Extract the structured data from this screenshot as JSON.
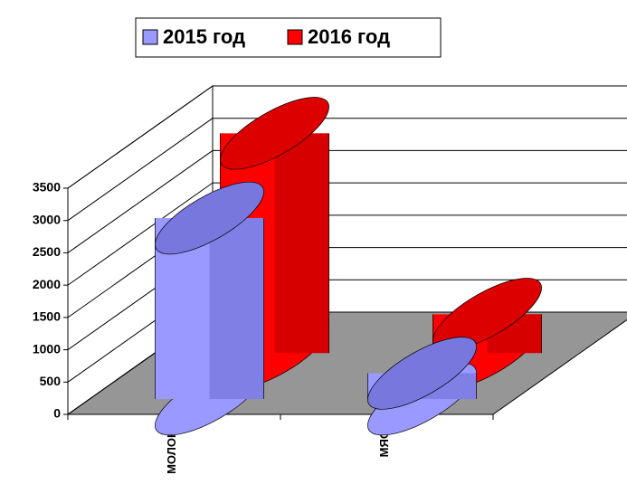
{
  "chart_data": {
    "type": "bar3d",
    "categories": [
      "МОЛОКО",
      "МЯСО"
    ],
    "series": [
      {
        "name": "2015 год",
        "color": "#9999ff",
        "values": [
          2800,
          400
        ]
      },
      {
        "name": "2016 год",
        "color": "#ff0000",
        "values": [
          3400,
          600
        ]
      }
    ],
    "ylim": [
      0,
      3500
    ],
    "yticks": [
      0,
      500,
      1000,
      1500,
      2000,
      2500,
      3000,
      3500
    ],
    "grid": true,
    "legend": "top"
  }
}
